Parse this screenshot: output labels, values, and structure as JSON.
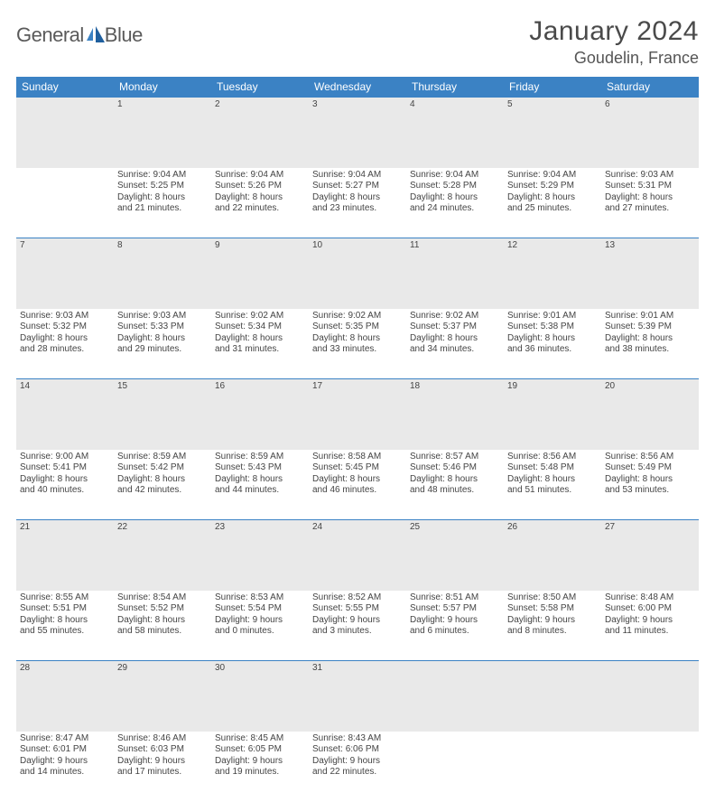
{
  "logo": {
    "word1": "General",
    "word2": "Blue"
  },
  "title": "January 2024",
  "location": "Goudelin, France",
  "header_bg": "#3b82c4",
  "header_fg": "#ffffff",
  "daynum_bg": "#e9e9e9",
  "daynum_fg": "#6a6a6a",
  "rule_color": "#3b82c4",
  "body_fg": "#444444",
  "fontsize_title": 30,
  "fontsize_location": 18,
  "fontsize_header": 12,
  "fontsize_daynum": 12,
  "fontsize_cell": 10,
  "days_of_week": [
    "Sunday",
    "Monday",
    "Tuesday",
    "Wednesday",
    "Thursday",
    "Friday",
    "Saturday"
  ],
  "weeks": [
    {
      "nums": [
        "",
        "1",
        "2",
        "3",
        "4",
        "5",
        "6"
      ],
      "cells": [
        [],
        [
          "Sunrise: 9:04 AM",
          "Sunset: 5:25 PM",
          "Daylight: 8 hours",
          "and 21 minutes."
        ],
        [
          "Sunrise: 9:04 AM",
          "Sunset: 5:26 PM",
          "Daylight: 8 hours",
          "and 22 minutes."
        ],
        [
          "Sunrise: 9:04 AM",
          "Sunset: 5:27 PM",
          "Daylight: 8 hours",
          "and 23 minutes."
        ],
        [
          "Sunrise: 9:04 AM",
          "Sunset: 5:28 PM",
          "Daylight: 8 hours",
          "and 24 minutes."
        ],
        [
          "Sunrise: 9:04 AM",
          "Sunset: 5:29 PM",
          "Daylight: 8 hours",
          "and 25 minutes."
        ],
        [
          "Sunrise: 9:03 AM",
          "Sunset: 5:31 PM",
          "Daylight: 8 hours",
          "and 27 minutes."
        ]
      ]
    },
    {
      "nums": [
        "7",
        "8",
        "9",
        "10",
        "11",
        "12",
        "13"
      ],
      "cells": [
        [
          "Sunrise: 9:03 AM",
          "Sunset: 5:32 PM",
          "Daylight: 8 hours",
          "and 28 minutes."
        ],
        [
          "Sunrise: 9:03 AM",
          "Sunset: 5:33 PM",
          "Daylight: 8 hours",
          "and 29 minutes."
        ],
        [
          "Sunrise: 9:02 AM",
          "Sunset: 5:34 PM",
          "Daylight: 8 hours",
          "and 31 minutes."
        ],
        [
          "Sunrise: 9:02 AM",
          "Sunset: 5:35 PM",
          "Daylight: 8 hours",
          "and 33 minutes."
        ],
        [
          "Sunrise: 9:02 AM",
          "Sunset: 5:37 PM",
          "Daylight: 8 hours",
          "and 34 minutes."
        ],
        [
          "Sunrise: 9:01 AM",
          "Sunset: 5:38 PM",
          "Daylight: 8 hours",
          "and 36 minutes."
        ],
        [
          "Sunrise: 9:01 AM",
          "Sunset: 5:39 PM",
          "Daylight: 8 hours",
          "and 38 minutes."
        ]
      ]
    },
    {
      "nums": [
        "14",
        "15",
        "16",
        "17",
        "18",
        "19",
        "20"
      ],
      "cells": [
        [
          "Sunrise: 9:00 AM",
          "Sunset: 5:41 PM",
          "Daylight: 8 hours",
          "and 40 minutes."
        ],
        [
          "Sunrise: 8:59 AM",
          "Sunset: 5:42 PM",
          "Daylight: 8 hours",
          "and 42 minutes."
        ],
        [
          "Sunrise: 8:59 AM",
          "Sunset: 5:43 PM",
          "Daylight: 8 hours",
          "and 44 minutes."
        ],
        [
          "Sunrise: 8:58 AM",
          "Sunset: 5:45 PM",
          "Daylight: 8 hours",
          "and 46 minutes."
        ],
        [
          "Sunrise: 8:57 AM",
          "Sunset: 5:46 PM",
          "Daylight: 8 hours",
          "and 48 minutes."
        ],
        [
          "Sunrise: 8:56 AM",
          "Sunset: 5:48 PM",
          "Daylight: 8 hours",
          "and 51 minutes."
        ],
        [
          "Sunrise: 8:56 AM",
          "Sunset: 5:49 PM",
          "Daylight: 8 hours",
          "and 53 minutes."
        ]
      ]
    },
    {
      "nums": [
        "21",
        "22",
        "23",
        "24",
        "25",
        "26",
        "27"
      ],
      "cells": [
        [
          "Sunrise: 8:55 AM",
          "Sunset: 5:51 PM",
          "Daylight: 8 hours",
          "and 55 minutes."
        ],
        [
          "Sunrise: 8:54 AM",
          "Sunset: 5:52 PM",
          "Daylight: 8 hours",
          "and 58 minutes."
        ],
        [
          "Sunrise: 8:53 AM",
          "Sunset: 5:54 PM",
          "Daylight: 9 hours",
          "and 0 minutes."
        ],
        [
          "Sunrise: 8:52 AM",
          "Sunset: 5:55 PM",
          "Daylight: 9 hours",
          "and 3 minutes."
        ],
        [
          "Sunrise: 8:51 AM",
          "Sunset: 5:57 PM",
          "Daylight: 9 hours",
          "and 6 minutes."
        ],
        [
          "Sunrise: 8:50 AM",
          "Sunset: 5:58 PM",
          "Daylight: 9 hours",
          "and 8 minutes."
        ],
        [
          "Sunrise: 8:48 AM",
          "Sunset: 6:00 PM",
          "Daylight: 9 hours",
          "and 11 minutes."
        ]
      ]
    },
    {
      "nums": [
        "28",
        "29",
        "30",
        "31",
        "",
        "",
        ""
      ],
      "cells": [
        [
          "Sunrise: 8:47 AM",
          "Sunset: 6:01 PM",
          "Daylight: 9 hours",
          "and 14 minutes."
        ],
        [
          "Sunrise: 8:46 AM",
          "Sunset: 6:03 PM",
          "Daylight: 9 hours",
          "and 17 minutes."
        ],
        [
          "Sunrise: 8:45 AM",
          "Sunset: 6:05 PM",
          "Daylight: 9 hours",
          "and 19 minutes."
        ],
        [
          "Sunrise: 8:43 AM",
          "Sunset: 6:06 PM",
          "Daylight: 9 hours",
          "and 22 minutes."
        ],
        [],
        [],
        []
      ]
    }
  ]
}
